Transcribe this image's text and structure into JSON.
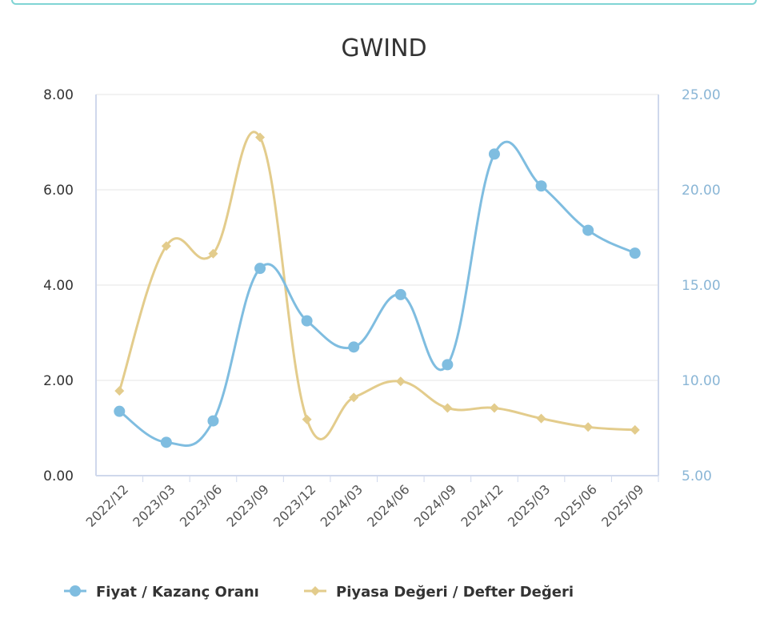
{
  "chart_data": {
    "type": "line",
    "title": "GWIND",
    "categories": [
      "2022/12",
      "2023/03",
      "2023/06",
      "2023/09",
      "2023/12",
      "2024/03",
      "2024/06",
      "2024/09",
      "2024/12",
      "2025/03",
      "2025/06",
      "2025/09"
    ],
    "series": [
      {
        "name": "Fiyat / Kazanç Oranı",
        "axis": "left",
        "color": "#7fbde0",
        "marker": "circle",
        "values": [
          1.35,
          0.7,
          1.15,
          4.35,
          3.25,
          2.7,
          3.8,
          2.33,
          6.75,
          6.08,
          5.15,
          4.67
        ]
      },
      {
        "name": "Piyasa Değeri / Defter Değeri",
        "axis": "right",
        "color": "#e3cc8c",
        "marker": "diamond",
        "values": [
          9.45,
          17.05,
          16.65,
          22.75,
          7.95,
          9.1,
          9.95,
          8.55,
          8.55,
          8.0,
          7.55,
          7.4
        ]
      }
    ],
    "y_left": {
      "range": [
        0,
        8
      ],
      "ticks": [
        "0.00",
        "2.00",
        "4.00",
        "6.00",
        "8.00"
      ]
    },
    "y_right": {
      "range": [
        5,
        25
      ],
      "ticks": [
        "5.00",
        "10.00",
        "15.00",
        "20.00",
        "25.00"
      ]
    },
    "grid": true,
    "legend_position": "bottom-left"
  }
}
